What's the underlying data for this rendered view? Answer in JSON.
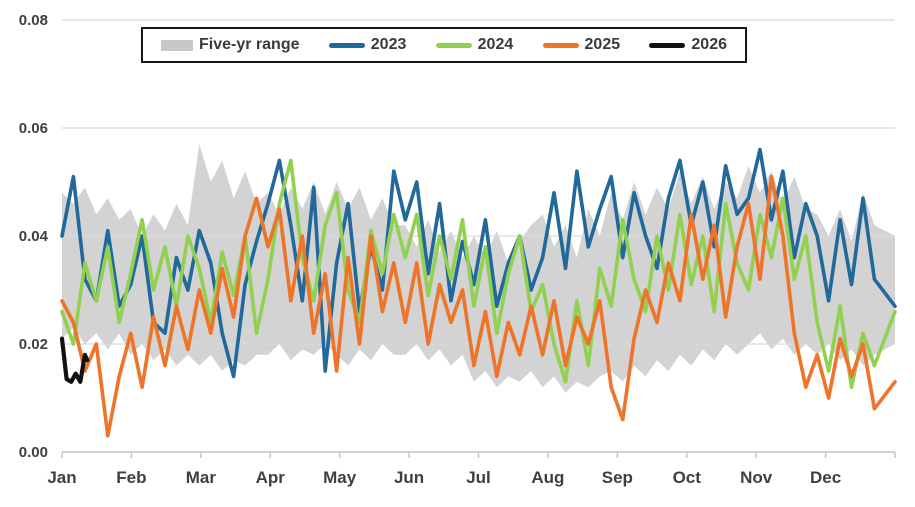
{
  "page": {
    "background": "#ffffff"
  },
  "legend": {
    "position": "top",
    "border_color": "#141414",
    "items": [
      {
        "label": "Five-yr range",
        "swatch": "band",
        "color": "#c8c8c8"
      },
      {
        "label": "2023",
        "swatch": "line",
        "color": "#21699b"
      },
      {
        "label": "2024",
        "swatch": "line",
        "color": "#92d050"
      },
      {
        "label": "2025",
        "swatch": "line",
        "color": "#ed7428"
      },
      {
        "label": "2026",
        "swatch": "line",
        "color": "#111111"
      }
    ]
  },
  "chart_data": {
    "type": "line",
    "title": "",
    "xlabel": "",
    "ylabel": "",
    "grid": "horizontal",
    "x_axis": {
      "tick_labels": [
        "Jan",
        "Feb",
        "Mar",
        "Apr",
        "May",
        "Jun",
        "Jul",
        "Aug",
        "Sep",
        "Oct",
        "Nov",
        "Dec"
      ],
      "domain_days": [
        1,
        365
      ]
    },
    "y_axis": {
      "ylim": [
        0,
        0.08
      ],
      "tick_values": [
        0,
        0.02,
        0.04,
        0.06,
        0.08
      ],
      "tick_labels": [
        "0.00",
        "0.02",
        "0.04",
        "0.06",
        "0.08"
      ]
    },
    "band": {
      "name": "Five-yr range",
      "color": "#d3d3d3",
      "color_legend": "#c8c8c8",
      "days": [
        1,
        6,
        11,
        16,
        21,
        26,
        31,
        36,
        41,
        46,
        51,
        56,
        61,
        66,
        71,
        76,
        81,
        86,
        91,
        96,
        101,
        106,
        111,
        116,
        121,
        126,
        131,
        136,
        141,
        146,
        151,
        156,
        161,
        166,
        171,
        176,
        181,
        186,
        191,
        196,
        201,
        206,
        211,
        216,
        221,
        226,
        231,
        236,
        241,
        246,
        251,
        256,
        261,
        266,
        271,
        276,
        281,
        286,
        291,
        296,
        301,
        306,
        311,
        316,
        321,
        326,
        331,
        336,
        341,
        346,
        351,
        356,
        365
      ],
      "upper": [
        0.048,
        0.046,
        0.049,
        0.044,
        0.047,
        0.043,
        0.045,
        0.04,
        0.044,
        0.041,
        0.046,
        0.042,
        0.057,
        0.05,
        0.054,
        0.047,
        0.052,
        0.046,
        0.048,
        0.044,
        0.049,
        0.045,
        0.05,
        0.044,
        0.05,
        0.045,
        0.049,
        0.043,
        0.047,
        0.042,
        0.042,
        0.038,
        0.043,
        0.037,
        0.041,
        0.036,
        0.04,
        0.036,
        0.041,
        0.035,
        0.039,
        0.042,
        0.044,
        0.038,
        0.042,
        0.036,
        0.045,
        0.04,
        0.048,
        0.043,
        0.05,
        0.044,
        0.049,
        0.045,
        0.052,
        0.046,
        0.051,
        0.045,
        0.05,
        0.047,
        0.053,
        0.048,
        0.052,
        0.046,
        0.051,
        0.045,
        0.044,
        0.04,
        0.045,
        0.039,
        0.048,
        0.042,
        0.04
      ],
      "lower": [
        0.021,
        0.023,
        0.02,
        0.022,
        0.019,
        0.022,
        0.018,
        0.02,
        0.017,
        0.019,
        0.016,
        0.018,
        0.016,
        0.018,
        0.015,
        0.017,
        0.016,
        0.018,
        0.018,
        0.02,
        0.017,
        0.019,
        0.018,
        0.02,
        0.018,
        0.016,
        0.019,
        0.017,
        0.02,
        0.018,
        0.018,
        0.02,
        0.017,
        0.019,
        0.016,
        0.018,
        0.013,
        0.015,
        0.012,
        0.014,
        0.013,
        0.015,
        0.012,
        0.014,
        0.011,
        0.013,
        0.012,
        0.014,
        0.015,
        0.013,
        0.016,
        0.014,
        0.017,
        0.015,
        0.018,
        0.016,
        0.019,
        0.017,
        0.02,
        0.018,
        0.02,
        0.022,
        0.019,
        0.021,
        0.018,
        0.02,
        0.018,
        0.02,
        0.017,
        0.019,
        0.016,
        0.018,
        0.02
      ]
    },
    "series": [
      {
        "name": "2023",
        "color": "#21699b",
        "width": 3.6,
        "days": [
          1,
          6,
          11,
          16,
          21,
          26,
          31,
          36,
          41,
          46,
          51,
          56,
          61,
          66,
          71,
          76,
          81,
          86,
          91,
          96,
          101,
          106,
          111,
          116,
          121,
          126,
          131,
          136,
          141,
          146,
          151,
          156,
          161,
          166,
          171,
          176,
          181,
          186,
          191,
          196,
          201,
          206,
          211,
          216,
          221,
          226,
          231,
          236,
          241,
          246,
          251,
          256,
          261,
          266,
          271,
          276,
          281,
          286,
          291,
          296,
          301,
          306,
          311,
          316,
          321,
          326,
          331,
          336,
          341,
          346,
          351,
          356,
          365
        ],
        "values": [
          0.04,
          0.051,
          0.032,
          0.028,
          0.041,
          0.027,
          0.031,
          0.04,
          0.024,
          0.022,
          0.036,
          0.03,
          0.041,
          0.035,
          0.022,
          0.014,
          0.031,
          0.039,
          0.046,
          0.054,
          0.042,
          0.028,
          0.049,
          0.015,
          0.035,
          0.046,
          0.026,
          0.038,
          0.03,
          0.052,
          0.043,
          0.05,
          0.033,
          0.046,
          0.028,
          0.039,
          0.031,
          0.043,
          0.027,
          0.035,
          0.04,
          0.03,
          0.036,
          0.048,
          0.034,
          0.052,
          0.038,
          0.045,
          0.051,
          0.036,
          0.048,
          0.04,
          0.034,
          0.047,
          0.054,
          0.042,
          0.05,
          0.038,
          0.053,
          0.044,
          0.047,
          0.056,
          0.043,
          0.052,
          0.036,
          0.046,
          0.04,
          0.028,
          0.043,
          0.031,
          0.047,
          0.032,
          0.027
        ]
      },
      {
        "name": "2024",
        "color": "#92d050",
        "width": 3.6,
        "days": [
          1,
          6,
          11,
          16,
          21,
          26,
          31,
          36,
          41,
          46,
          51,
          56,
          61,
          66,
          71,
          76,
          81,
          86,
          91,
          96,
          101,
          106,
          111,
          116,
          121,
          126,
          131,
          136,
          141,
          146,
          151,
          156,
          161,
          166,
          171,
          176,
          181,
          186,
          191,
          196,
          201,
          206,
          211,
          216,
          221,
          226,
          231,
          236,
          241,
          246,
          251,
          256,
          261,
          266,
          271,
          276,
          281,
          286,
          291,
          296,
          301,
          306,
          311,
          316,
          321,
          326,
          331,
          336,
          341,
          346,
          351,
          356,
          365
        ],
        "values": [
          0.026,
          0.02,
          0.035,
          0.028,
          0.038,
          0.024,
          0.033,
          0.043,
          0.03,
          0.038,
          0.027,
          0.04,
          0.034,
          0.024,
          0.037,
          0.029,
          0.04,
          0.022,
          0.032,
          0.046,
          0.054,
          0.036,
          0.028,
          0.042,
          0.048,
          0.03,
          0.024,
          0.041,
          0.033,
          0.044,
          0.036,
          0.044,
          0.029,
          0.04,
          0.032,
          0.043,
          0.027,
          0.038,
          0.022,
          0.033,
          0.04,
          0.026,
          0.031,
          0.02,
          0.013,
          0.028,
          0.016,
          0.034,
          0.027,
          0.043,
          0.032,
          0.026,
          0.04,
          0.03,
          0.044,
          0.031,
          0.04,
          0.026,
          0.046,
          0.035,
          0.03,
          0.044,
          0.036,
          0.047,
          0.032,
          0.04,
          0.024,
          0.015,
          0.027,
          0.012,
          0.022,
          0.016,
          0.026
        ]
      },
      {
        "name": "2025",
        "color": "#ed7428",
        "width": 3.6,
        "days": [
          1,
          6,
          11,
          16,
          21,
          26,
          31,
          36,
          41,
          46,
          51,
          56,
          61,
          66,
          71,
          76,
          81,
          86,
          91,
          96,
          101,
          106,
          111,
          116,
          121,
          126,
          131,
          136,
          141,
          146,
          151,
          156,
          161,
          166,
          171,
          176,
          181,
          186,
          191,
          196,
          201,
          206,
          211,
          216,
          221,
          226,
          231,
          236,
          241,
          246,
          251,
          256,
          261,
          266,
          271,
          276,
          281,
          286,
          291,
          296,
          301,
          306,
          311,
          316,
          321,
          326,
          331,
          336,
          341,
          346,
          351,
          356,
          365
        ],
        "values": [
          0.028,
          0.024,
          0.015,
          0.02,
          0.003,
          0.014,
          0.022,
          0.012,
          0.025,
          0.016,
          0.027,
          0.019,
          0.03,
          0.022,
          0.034,
          0.025,
          0.04,
          0.047,
          0.038,
          0.045,
          0.028,
          0.04,
          0.022,
          0.033,
          0.015,
          0.036,
          0.02,
          0.04,
          0.026,
          0.035,
          0.024,
          0.035,
          0.02,
          0.031,
          0.024,
          0.03,
          0.016,
          0.026,
          0.014,
          0.024,
          0.018,
          0.027,
          0.018,
          0.028,
          0.016,
          0.025,
          0.02,
          0.028,
          0.012,
          0.006,
          0.021,
          0.03,
          0.024,
          0.035,
          0.028,
          0.044,
          0.032,
          0.042,
          0.025,
          0.038,
          0.046,
          0.032,
          0.051,
          0.04,
          0.022,
          0.012,
          0.018,
          0.01,
          0.021,
          0.014,
          0.02,
          0.008,
          0.013
        ]
      },
      {
        "name": "2026",
        "color": "#111111",
        "width": 4.2,
        "days": [
          1,
          3,
          5,
          7,
          9,
          11,
          12
        ],
        "values": [
          0.021,
          0.0135,
          0.013,
          0.0145,
          0.013,
          0.018,
          0.017
        ]
      }
    ]
  }
}
